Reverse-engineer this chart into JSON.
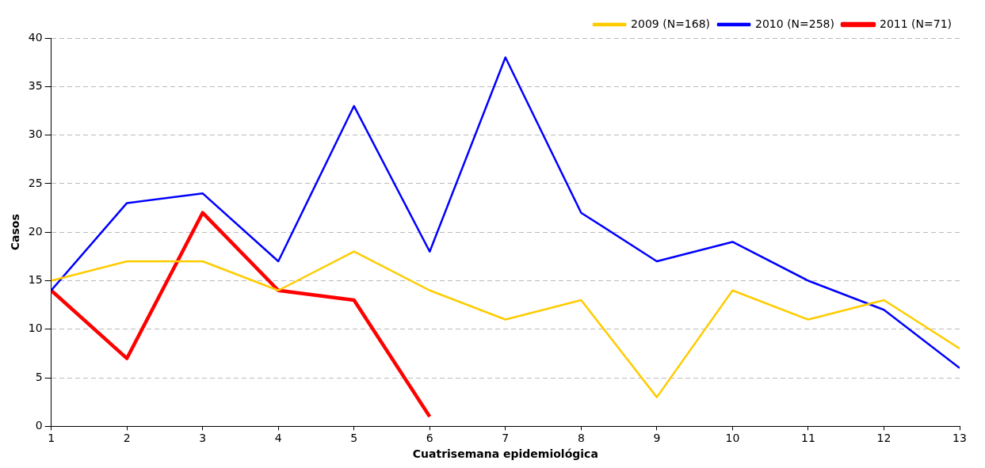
{
  "chart_data": {
    "type": "line",
    "xlabel": "Cuatrisemana epidemiológica",
    "ylabel": "Casos",
    "x": [
      1,
      2,
      3,
      4,
      5,
      6,
      7,
      8,
      9,
      10,
      11,
      12,
      13
    ],
    "series": [
      {
        "name": "2009 (N=168)",
        "color": "#ffcc00",
        "values": [
          15,
          17,
          17,
          14,
          18,
          14,
          11,
          13,
          3,
          14,
          11,
          13,
          8
        ]
      },
      {
        "name": "2010 (N=258)",
        "color": "#0000ff",
        "values": [
          14,
          23,
          24,
          17,
          33,
          18,
          38,
          22,
          17,
          19,
          15,
          12,
          6
        ]
      },
      {
        "name": "2011 (N=71)",
        "color": "#ff0000",
        "values": [
          14,
          7,
          22,
          14,
          13,
          1,
          null,
          null,
          null,
          null,
          null,
          null,
          null
        ]
      }
    ],
    "xlim": [
      1,
      13
    ],
    "xticks": [
      1,
      2,
      3,
      4,
      5,
      6,
      7,
      8,
      9,
      10,
      11,
      12,
      13
    ],
    "ylim": [
      0,
      40
    ],
    "yticks": [
      0,
      5,
      10,
      15,
      20,
      25,
      30,
      35,
      40
    ],
    "grid": "y",
    "legend": "top right",
    "marker": "none",
    "line_style": "solid"
  }
}
